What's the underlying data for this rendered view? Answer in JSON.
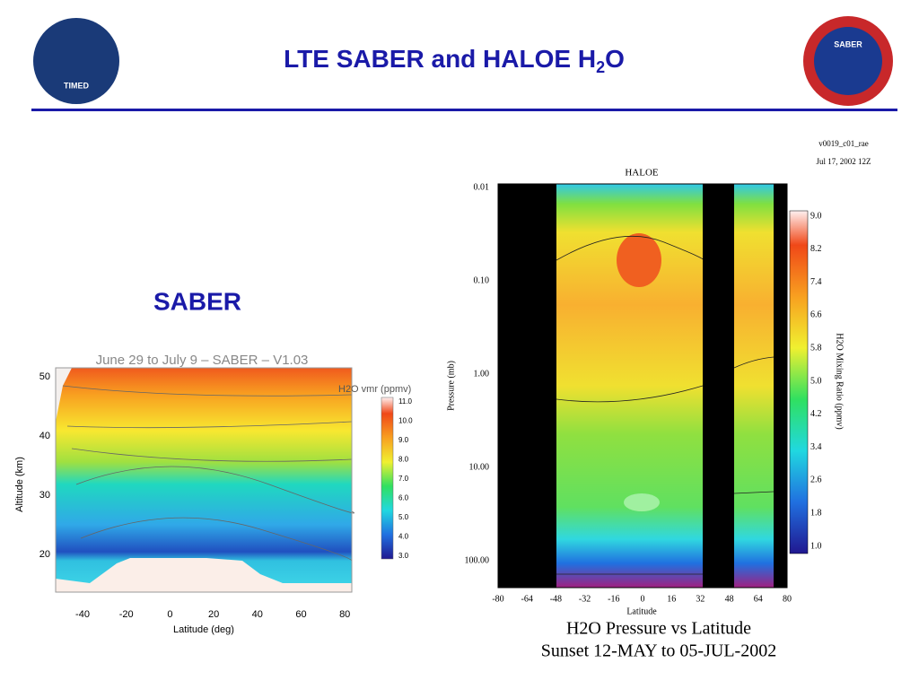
{
  "header": {
    "title_main": "LTE SABER and HALOE H",
    "title_sub": "2",
    "title_end": "O",
    "section_label": "SABER",
    "logo_left": "TIMED",
    "logo_right": "SABER"
  },
  "saber_plot": {
    "title": "June 29 to July 9 – SABER – V1.03",
    "y_label": "Altitude (km)",
    "x_label": "Latitude (deg)",
    "y_ticks": [
      "20",
      "30",
      "40",
      "50"
    ],
    "x_ticks": [
      "-40",
      "-20",
      "0",
      "20",
      "40",
      "60",
      "80"
    ],
    "colorbar_title": "H2O vmr (ppmv)",
    "colorbar_ticks": [
      "3.0",
      "4.0",
      "5.0",
      "6.0",
      "7.0",
      "8.0",
      "9.0",
      "10.0",
      "11.0"
    ]
  },
  "haloe_plot": {
    "run_id": "v0019_c01_rae",
    "date": "Jul 17, 2002 12Z",
    "instrument": "HALOE",
    "y_label": "Pressure (mb)",
    "x_label": "Latitude",
    "y_ticks": [
      "0.01",
      "0.10",
      "1.00",
      "10.00",
      "100.00"
    ],
    "x_ticks": [
      "-80",
      "-64",
      "-48",
      "-32",
      "-16",
      "0",
      "16",
      "32",
      "48",
      "64",
      "80"
    ],
    "colorbar_label": "H2O Mixing Ratio (ppmv)",
    "colorbar_ticks": [
      "1.0",
      "1.8",
      "2.6",
      "3.4",
      "4.2",
      "5.0",
      "5.8",
      "6.6",
      "7.4",
      "8.2",
      "9.0"
    ],
    "caption_line1": "H2O Pressure vs Latitude",
    "caption_line2": "Sunset 12-MAY to 05-JUL-2002"
  }
}
